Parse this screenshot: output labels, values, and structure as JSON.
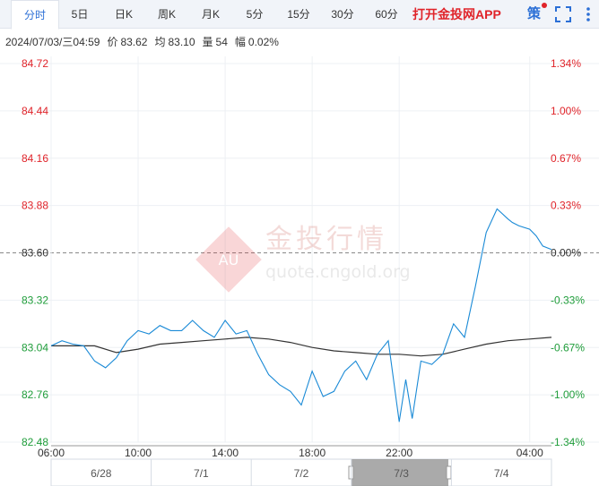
{
  "tabs": [
    {
      "label": "分时",
      "active": true
    },
    {
      "label": "5日",
      "active": false
    },
    {
      "label": "日K",
      "active": false
    },
    {
      "label": "周K",
      "active": false
    },
    {
      "label": "月K",
      "active": false
    },
    {
      "label": "5分",
      "active": false
    },
    {
      "label": "15分",
      "active": false
    },
    {
      "label": "30分",
      "active": false
    },
    {
      "label": "60分",
      "active": false
    }
  ],
  "app_link": "打开金投网APP",
  "strategy_label": "策",
  "info": {
    "datetime": "2024/07/03/三04:59",
    "price_label": "价",
    "price": "83.62",
    "avg_label": "均",
    "avg": "83.10",
    "volume_label": "量",
    "volume": "54",
    "change_label": "幅",
    "change": "0.02%"
  },
  "watermark": {
    "name": "金投行情",
    "url": "quote.cngold.org",
    "badge": "AU"
  },
  "colors": {
    "up": "#e0242a",
    "down": "#1f9d3a",
    "price_line": "#1a8ad6",
    "avg_line": "#333333"
  },
  "chart_data": {
    "type": "line",
    "y_ticks": [
      "84.72",
      "84.44",
      "84.16",
      "83.88",
      "83.60",
      "83.32",
      "83.04",
      "82.76",
      "82.48"
    ],
    "pct_ticks": [
      "1.34%",
      "1.00%",
      "0.67%",
      "0.33%",
      "0.00%",
      "-0.33%",
      "-0.67%",
      "-1.00%",
      "-1.34%"
    ],
    "ylim": [
      82.48,
      84.72
    ],
    "reference_price": 83.6,
    "x_ticks": [
      "06:00",
      "10:00",
      "14:00",
      "18:00",
      "22:00",
      "04:00"
    ],
    "x_tick_hours": [
      0,
      4,
      8,
      12,
      16,
      22
    ],
    "xlim_hours": [
      0,
      23
    ],
    "nav_dates": [
      "6/28",
      "7/1",
      "7/2",
      "7/3",
      "7/4"
    ],
    "series": [
      {
        "key": "price",
        "x_hours": [
          0,
          0.5,
          1,
          1.5,
          2,
          2.5,
          3,
          3.5,
          4,
          4.5,
          5,
          5.5,
          6,
          6.5,
          7,
          7.5,
          8,
          8.5,
          9,
          9.5,
          10,
          10.5,
          11,
          11.5,
          12,
          12.5,
          13,
          13.5,
          14,
          14.5,
          15,
          15.5,
          16,
          16.3,
          16.6,
          17,
          17.5,
          18,
          18.5,
          19,
          19.5,
          20,
          20.5,
          21,
          21.2,
          21.5,
          22,
          22.3,
          22.6,
          23
        ],
        "y": [
          83.05,
          83.08,
          83.06,
          83.05,
          82.96,
          82.92,
          82.98,
          83.08,
          83.14,
          83.12,
          83.17,
          83.14,
          83.14,
          83.2,
          83.14,
          83.1,
          83.2,
          83.12,
          83.14,
          83.0,
          82.88,
          82.82,
          82.78,
          82.7,
          82.9,
          82.75,
          82.78,
          82.9,
          82.96,
          82.85,
          83.0,
          83.08,
          82.6,
          82.85,
          82.62,
          82.96,
          82.94,
          83.0,
          83.18,
          83.1,
          83.4,
          83.72,
          83.86,
          83.8,
          83.78,
          83.76,
          83.74,
          83.7,
          83.64,
          83.62
        ]
      },
      {
        "key": "avg",
        "x_hours": [
          0,
          1,
          2,
          3,
          4,
          5,
          6,
          7,
          8,
          9,
          10,
          11,
          12,
          13,
          14,
          15,
          16,
          17,
          18,
          19,
          20,
          21,
          22,
          23
        ],
        "y": [
          83.05,
          83.05,
          83.05,
          83.01,
          83.03,
          83.06,
          83.07,
          83.08,
          83.09,
          83.1,
          83.09,
          83.07,
          83.04,
          83.02,
          83.01,
          83.0,
          83.0,
          82.99,
          83.0,
          83.03,
          83.06,
          83.08,
          83.09,
          83.1
        ]
      }
    ]
  }
}
